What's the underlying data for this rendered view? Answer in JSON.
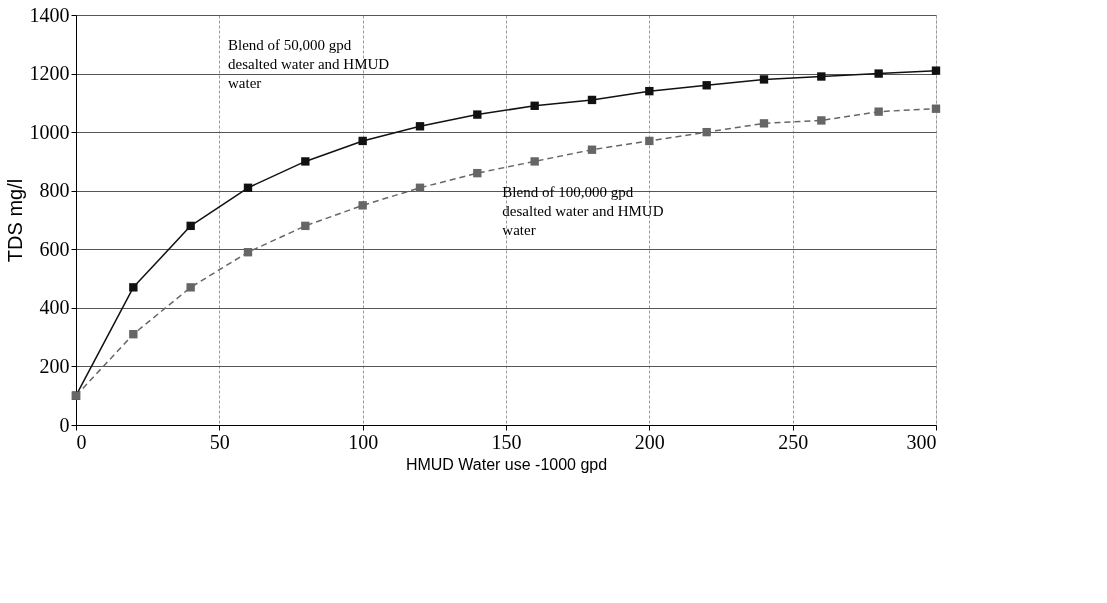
{
  "chart_data": {
    "type": "line",
    "xlabel": "HMUD Water use -1000 gpd",
    "ylabel": "TDS mg/l",
    "x": [
      0,
      20,
      40,
      60,
      80,
      100,
      120,
      140,
      160,
      180,
      200,
      220,
      240,
      260,
      280,
      300
    ],
    "series": [
      {
        "name": "Blend of 50,000 gpd desalted water and HMUD water",
        "color": "#111111",
        "line_style": "solid",
        "values": [
          100,
          470,
          680,
          810,
          900,
          970,
          1020,
          1060,
          1090,
          1110,
          1140,
          1160,
          1180,
          1190,
          1200,
          1210
        ]
      },
      {
        "name": "Blend of 100,000 gpd desalted water and HMUD water",
        "color": "#666666",
        "line_style": "dashed",
        "values": [
          100,
          310,
          470,
          590,
          680,
          750,
          810,
          860,
          900,
          940,
          970,
          1000,
          1030,
          1040,
          1070,
          1080
        ]
      }
    ],
    "xlim": [
      0,
      300
    ],
    "xticks": [
      0,
      50,
      100,
      150,
      200,
      250,
      300
    ],
    "ylim": [
      0,
      1400
    ],
    "yticks": [
      0,
      200,
      400,
      600,
      800,
      1000,
      1200,
      1400
    ],
    "grid": true,
    "marker": "square"
  }
}
